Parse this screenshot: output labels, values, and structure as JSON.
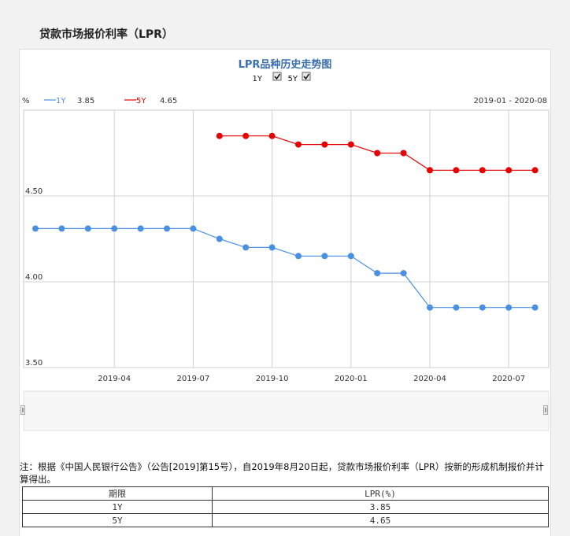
{
  "page": {
    "title": "贷款市场报价利率（LPR）"
  },
  "legend_toggles": [
    {
      "label": "1Y",
      "checked": true
    },
    {
      "label": "5Y",
      "checked": true
    }
  ],
  "date_range": "2019-01 - 2020-08",
  "legend_readout": [
    {
      "name": "1Y",
      "value": "3.85",
      "color": "#4a90e2"
    },
    {
      "name": "5Y",
      "value": "4.65",
      "color": "#e60000"
    }
  ],
  "chart_data": {
    "type": "line",
    "title": "LPR品种历史走势图",
    "ylabel": "%",
    "ylim": [
      3.5,
      5.0
    ],
    "yticks": [
      "3.50",
      "4.00",
      "4.50"
    ],
    "xtick_labels": [
      "2019-04",
      "2019-07",
      "2019-10",
      "2020-01",
      "2020-04",
      "2020-07"
    ],
    "x": [
      "2019-01",
      "2019-02",
      "2019-03",
      "2019-04",
      "2019-05",
      "2019-06",
      "2019-07",
      "2019-08",
      "2019-09",
      "2019-10",
      "2019-11",
      "2019-12",
      "2020-01",
      "2020-02",
      "2020-03",
      "2020-04",
      "2020-05",
      "2020-06",
      "2020-07",
      "2020-08"
    ],
    "series": [
      {
        "name": "1Y",
        "color": "#4a90e2",
        "values": [
          4.31,
          4.31,
          4.31,
          4.31,
          4.31,
          4.31,
          4.31,
          4.25,
          4.2,
          4.2,
          4.15,
          4.15,
          4.15,
          4.05,
          4.05,
          3.85,
          3.85,
          3.85,
          3.85,
          3.85
        ]
      },
      {
        "name": "5Y",
        "color": "#e60000",
        "values": [
          null,
          null,
          null,
          null,
          null,
          null,
          null,
          4.85,
          4.85,
          4.85,
          4.8,
          4.8,
          4.8,
          4.75,
          4.75,
          4.65,
          4.65,
          4.65,
          4.65,
          4.65
        ]
      }
    ],
    "grid": true
  },
  "note": "注：根据《中国人民银行公告》（公告[2019]第15号），自2019年8月20日起，贷款市场报价利率（LPR）按新的形成机制报价并计算得出。",
  "table": {
    "headers": [
      "期限",
      "LPR(%)"
    ],
    "rows": [
      [
        "1Y",
        "3.85"
      ],
      [
        "5Y",
        "4.65"
      ]
    ]
  }
}
